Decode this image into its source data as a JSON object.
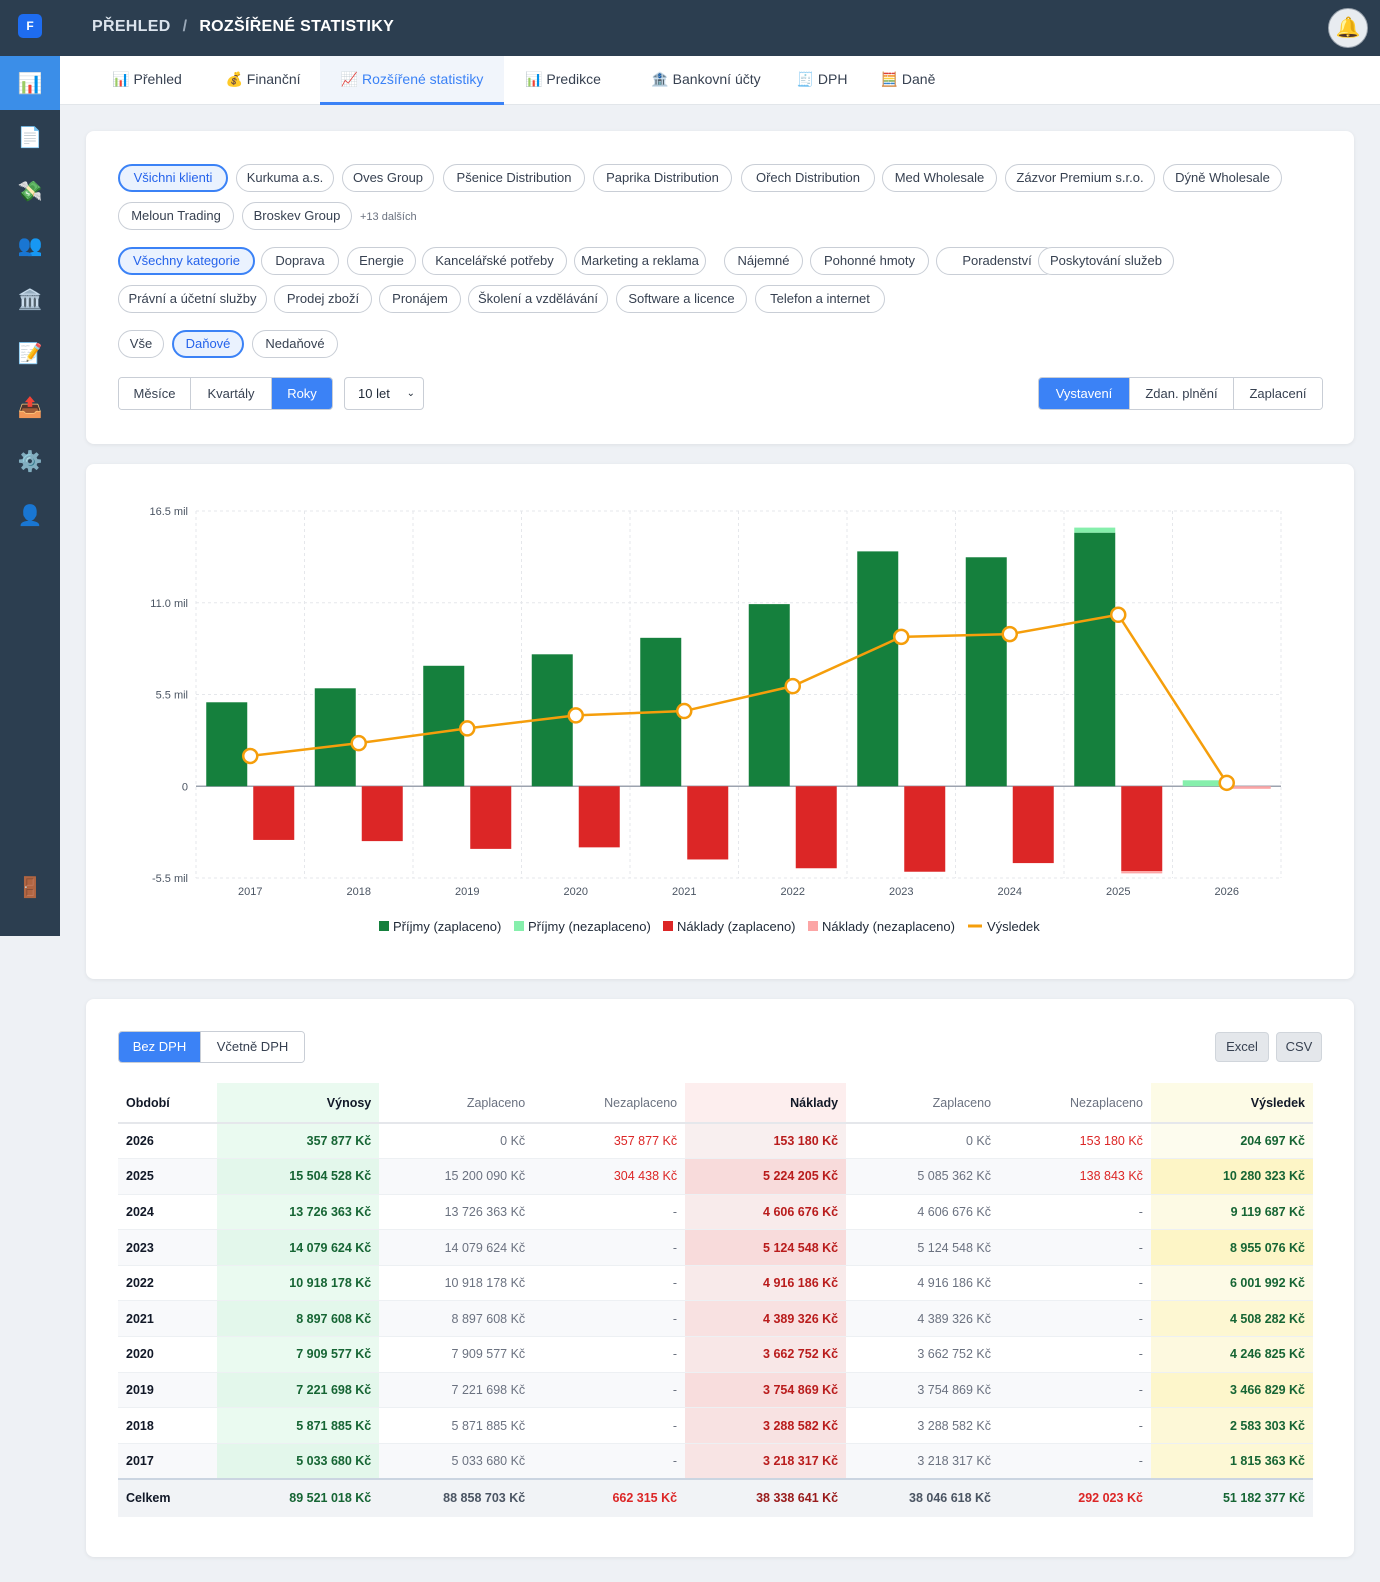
{
  "app": {
    "logo": "F"
  },
  "sidebar": {
    "items": [
      {
        "icon": "📊",
        "name": "dashboard-icon"
      },
      {
        "icon": "📄",
        "name": "document-icon"
      },
      {
        "icon": "💸",
        "name": "money-icon"
      },
      {
        "icon": "👥",
        "name": "users-icon"
      },
      {
        "icon": "🏛️",
        "name": "bank-icon"
      },
      {
        "icon": "📝",
        "name": "memo-icon"
      },
      {
        "icon": "📤",
        "name": "outbox-icon"
      },
      {
        "icon": "⚙️",
        "name": "gear-icon"
      },
      {
        "icon": "👤",
        "name": "user-icon"
      }
    ],
    "logout_icon": "🚪"
  },
  "breadcrumb": {
    "parent": "PŘEHLED",
    "separator": "/",
    "current": "ROZŠÍŘENÉ STATISTIKY"
  },
  "bell_icon": "🔔",
  "tabs": [
    {
      "label": "📊 Přehled"
    },
    {
      "label": "💰 Finanční"
    },
    {
      "label": "📈 Rozšířené statistiky"
    },
    {
      "label": "📊 Predikce"
    },
    {
      "label": "🏦 Bankovní účty"
    },
    {
      "label": "🧾 DPH"
    },
    {
      "label": "🧮 Daně"
    }
  ],
  "filters": {
    "clients": [
      "Všichni klienti",
      "Kurkuma a.s.",
      "Oves Group",
      "Pšenice Distribution",
      "Paprika Distribution",
      "Ořech Distribution",
      "Med Wholesale",
      "Zázvor Premium s.r.o.",
      "Dýně Wholesale",
      "Meloun Trading",
      "Broskev Group"
    ],
    "clients_more": "+13 dalších",
    "categories": [
      "Všechny kategorie",
      "Doprava",
      "Energie",
      "Kancelářské potřeby",
      "Marketing a reklama",
      "Nájemné",
      "Pohonné hmoty",
      "Poradenství",
      "Poskytování služeb",
      "Právní a účetní služby",
      "Prodej zboží",
      "Pronájem",
      "Školení a vzdělávání",
      "Software a licence",
      "Telefon a internet"
    ],
    "tax_types": [
      "Vše",
      "Daňové",
      "Nedaňové"
    ],
    "periods": [
      "Měsíce",
      "Kvartály",
      "Roky"
    ],
    "range": "10 let",
    "date_basis": [
      "Vystavení",
      "Zdan. plnění",
      "Zaplacení"
    ]
  },
  "chart_data": {
    "type": "bar",
    "categories": [
      "2017",
      "2018",
      "2019",
      "2020",
      "2021",
      "2022",
      "2023",
      "2024",
      "2025",
      "2026"
    ],
    "y_ticks": [
      "16.5 mil",
      "11.0 mil",
      "5.5 mil",
      "0",
      "-5.5 mil"
    ],
    "ylim": [
      -5.5,
      16.5
    ],
    "grid": true,
    "legend_position": "bottom",
    "series": [
      {
        "name": "Příjmy (zaplaceno)",
        "type": "bar",
        "stack": "income",
        "color": "#15803d",
        "values": [
          5.03368,
          5.871885,
          7.221698,
          7.909577,
          8.897608,
          10.918178,
          14.079624,
          13.726363,
          15.20009,
          0
        ]
      },
      {
        "name": "Příjmy (nezaplaceno)",
        "type": "bar",
        "stack": "income",
        "color": "#86efac",
        "values": [
          0,
          0,
          0,
          0,
          0,
          0,
          0,
          0,
          0.304438,
          0.357877
        ]
      },
      {
        "name": "Náklady (zaplaceno)",
        "type": "bar",
        "stack": "cost",
        "color": "#dc2626",
        "values": [
          -3.218317,
          -3.288582,
          -3.754869,
          -3.662752,
          -4.389326,
          -4.916186,
          -5.124548,
          -4.606676,
          -5.085362,
          0
        ]
      },
      {
        "name": "Náklady (nezaplaceno)",
        "type": "bar",
        "stack": "cost",
        "color": "#fca5a5",
        "values": [
          0,
          0,
          0,
          0,
          0,
          0,
          0,
          0,
          -0.138843,
          -0.15318
        ]
      },
      {
        "name": "Výsledek",
        "type": "line",
        "color": "#f59e0b",
        "values": [
          1.815363,
          2.583303,
          3.466829,
          4.246825,
          4.508282,
          6.001992,
          8.955076,
          9.119687,
          10.280323,
          0.204697
        ]
      }
    ]
  },
  "table": {
    "vat_toggle": [
      "Bez DPH",
      "Včetně DPH"
    ],
    "export": [
      "Excel",
      "CSV"
    ],
    "headers": [
      "Období",
      "Výnosy",
      "Zaplaceno",
      "Nezaplaceno",
      "Náklady",
      "Zaplaceno",
      "Nezaplaceno",
      "Výsledek"
    ],
    "rows": [
      [
        "2026",
        "357 877 Kč",
        "0 Kč",
        "357 877 Kč",
        "153 180 Kč",
        "0 Kč",
        "153 180 Kč",
        "204 697 Kč"
      ],
      [
        "2025",
        "15 504 528 Kč",
        "15 200 090 Kč",
        "304 438 Kč",
        "5 224 205 Kč",
        "5 085 362 Kč",
        "138 843 Kč",
        "10 280 323 Kč"
      ],
      [
        "2024",
        "13 726 363 Kč",
        "13 726 363 Kč",
        "-",
        "4 606 676 Kč",
        "4 606 676 Kč",
        "-",
        "9 119 687 Kč"
      ],
      [
        "2023",
        "14 079 624 Kč",
        "14 079 624 Kč",
        "-",
        "5 124 548 Kč",
        "5 124 548 Kč",
        "-",
        "8 955 076 Kč"
      ],
      [
        "2022",
        "10 918 178 Kč",
        "10 918 178 Kč",
        "-",
        "4 916 186 Kč",
        "4 916 186 Kč",
        "-",
        "6 001 992 Kč"
      ],
      [
        "2021",
        "8 897 608 Kč",
        "8 897 608 Kč",
        "-",
        "4 389 326 Kč",
        "4 389 326 Kč",
        "-",
        "4 508 282 Kč"
      ],
      [
        "2020",
        "7 909 577 Kč",
        "7 909 577 Kč",
        "-",
        "3 662 752 Kč",
        "3 662 752 Kč",
        "-",
        "4 246 825 Kč"
      ],
      [
        "2019",
        "7 221 698 Kč",
        "7 221 698 Kč",
        "-",
        "3 754 869 Kč",
        "3 754 869 Kč",
        "-",
        "3 466 829 Kč"
      ],
      [
        "2018",
        "5 871 885 Kč",
        "5 871 885 Kč",
        "-",
        "3 288 582 Kč",
        "3 288 582 Kč",
        "-",
        "2 583 303 Kč"
      ],
      [
        "2017",
        "5 033 680 Kč",
        "5 033 680 Kč",
        "-",
        "3 218 317 Kč",
        "3 218 317 Kč",
        "-",
        "1 815 363 Kč"
      ]
    ],
    "total": [
      "Celkem",
      "89 521 018 Kč",
      "88 858 703 Kč",
      "662 315 Kč",
      "38 338 641 Kč",
      "38 046 618 Kč",
      "292 023 Kč",
      "51 182 377 Kč"
    ],
    "cost_intensity": [
      0.05,
      0.85,
      0.2,
      0.85,
      0.25,
      0.6,
      0.35,
      0.75,
      0.55,
      0.5
    ],
    "result_intensity": [
      0.05,
      0.85,
      0.25,
      0.85,
      0.2,
      0.6,
      0.35,
      0.75,
      0.5,
      0.55
    ]
  }
}
